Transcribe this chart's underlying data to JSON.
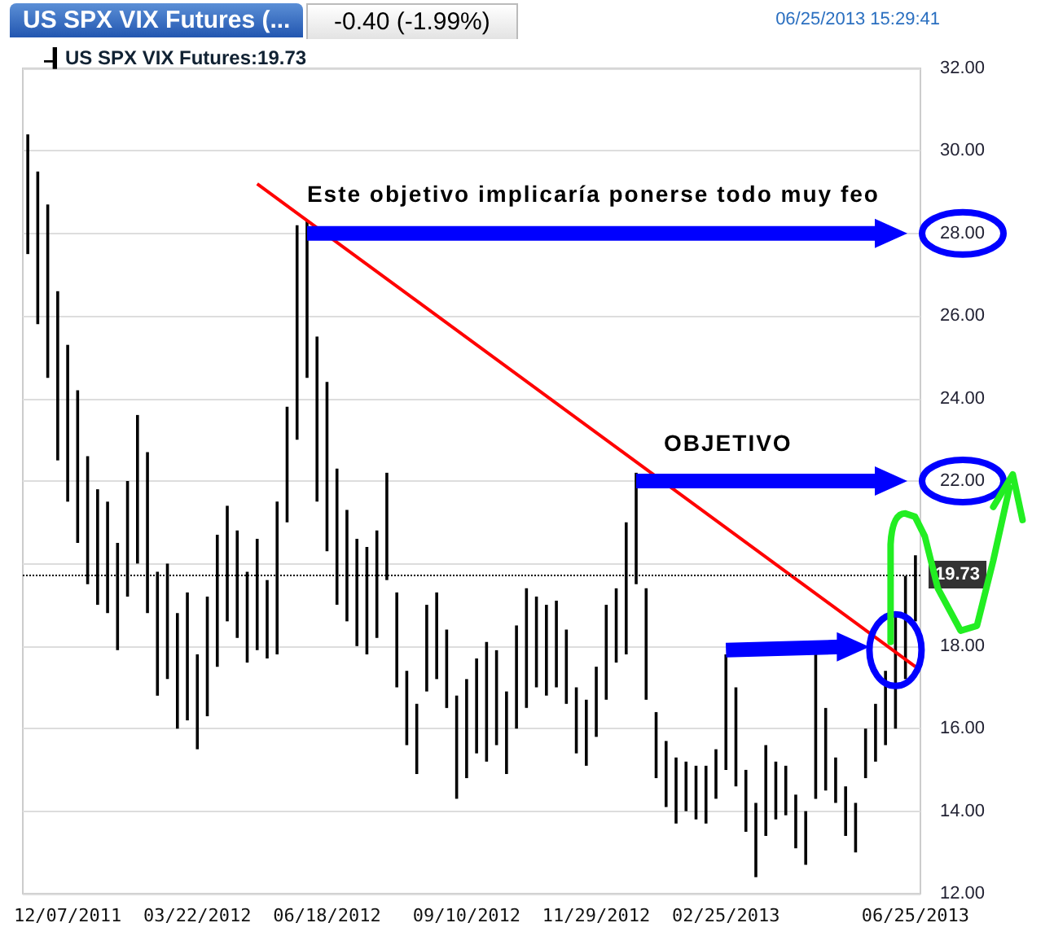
{
  "chart_data": {
    "type": "bar",
    "title": "US SPX VIX Futures (...",
    "subtitle": "-0.40 (-1.99%)",
    "annotations": [
      "06/25/2013 15:29:41",
      "Este objetivo implicaría ponerse todo muy feo",
      "OBJETIVO"
    ],
    "categories": [
      null,
      null,
      null,
      null,
      "12/07/2011",
      null,
      null,
      null,
      null,
      null,
      null,
      null,
      null,
      null,
      null,
      null,
      null,
      "03/22/2012",
      null,
      null,
      null,
      null,
      null,
      null,
      null,
      null,
      null,
      null,
      null,
      null,
      "06/18/2012",
      null,
      null,
      null,
      null,
      null,
      null,
      null,
      null,
      null,
      null,
      null,
      null,
      null,
      "09/10/2012",
      null,
      null,
      null,
      null,
      null,
      null,
      null,
      null,
      null,
      null,
      null,
      null,
      "11/29/2012",
      null,
      null,
      null,
      null,
      null,
      null,
      null,
      null,
      null,
      null,
      null,
      null,
      "02/25/2013",
      null,
      null,
      null,
      null,
      null,
      null,
      null,
      null,
      null,
      null,
      null,
      null,
      null,
      null,
      null,
      null,
      null,
      null,
      "06/25/2013"
    ],
    "series": [
      {
        "name": "US SPX VIX Futures:19.73",
        "color": "#000000",
        "base": [
          27.5,
          25.8,
          24.5,
          22.5,
          21.5,
          20.5,
          19.5,
          19.0,
          18.8,
          17.9,
          19.2,
          20.0,
          18.8,
          16.8,
          17.2,
          16.0,
          16.2,
          15.5,
          16.3,
          17.5,
          18.6,
          18.2,
          17.6,
          17.9,
          17.7,
          17.8,
          21.0,
          23.0,
          24.5,
          21.5,
          20.3,
          19.0,
          18.6,
          18.0,
          17.8,
          18.2,
          19.6,
          17.0,
          15.6,
          14.9,
          16.9,
          17.2,
          16.5,
          14.3,
          14.8,
          15.4,
          15.2,
          15.6,
          14.9,
          16.0,
          16.5,
          17.0,
          16.8,
          17.0,
          16.6,
          15.4,
          15.1,
          15.8,
          16.7,
          17.6,
          17.8,
          19.5,
          16.7,
          14.8,
          14.1,
          13.7,
          14.0,
          13.8,
          13.7,
          14.3,
          15.0,
          14.6,
          13.5,
          12.4,
          13.4,
          13.8,
          13.9,
          13.1,
          12.7,
          14.3,
          14.5,
          14.2,
          13.4,
          13.0,
          14.8,
          15.2,
          15.6,
          16.0,
          17.2,
          18.6
        ],
        "values": [
          2.9,
          3.7,
          4.2,
          4.1,
          3.8,
          3.7,
          3.1,
          2.8,
          2.7,
          2.6,
          2.8,
          3.6,
          3.9,
          3.0,
          2.8,
          2.8,
          3.1,
          2.3,
          2.9,
          3.2,
          2.8,
          2.6,
          2.2,
          2.7,
          1.9,
          3.7,
          2.8,
          5.2,
          3.8,
          4.0,
          4.1,
          3.3,
          2.7,
          2.6,
          2.6,
          2.6,
          2.6,
          2.3,
          1.8,
          1.7,
          2.1,
          2.1,
          1.9,
          2.5,
          2.4,
          2.3,
          2.9,
          2.3,
          2.0,
          2.5,
          2.9,
          2.2,
          2.2,
          2.1,
          1.8,
          1.6,
          1.6,
          1.7,
          2.3,
          1.8,
          3.2,
          2.7,
          2.7,
          1.6,
          1.6,
          1.6,
          1.2,
          1.3,
          1.4,
          1.2,
          2.8,
          2.4,
          1.5,
          1.8,
          2.2,
          1.4,
          1.2,
          1.3,
          1.3,
          3.5,
          2.0,
          1.1,
          1.2,
          1.2,
          1.2,
          1.4,
          1.8,
          2.8,
          2.5,
          1.6
        ]
      },
      {
        "type": "line",
        "color": "#ff0000",
        "values": [
          null,
          null,
          null,
          null,
          null,
          null,
          null,
          null,
          null,
          null,
          null,
          null,
          null,
          null,
          null,
          null,
          null,
          null,
          null,
          null,
          null,
          null,
          null,
          29.2,
          null,
          null,
          null,
          null,
          null,
          null,
          null,
          null,
          null,
          null,
          null,
          null,
          null,
          null,
          null,
          null,
          null,
          null,
          null,
          null,
          null,
          null,
          null,
          null,
          null,
          null,
          null,
          null,
          null,
          null,
          null,
          null,
          null,
          null,
          null,
          null,
          null,
          null,
          null,
          null,
          null,
          null,
          null,
          null,
          null,
          null,
          null,
          null,
          null,
          null,
          null,
          null,
          null,
          null,
          null,
          null,
          null,
          null,
          null,
          null,
          null,
          null,
          null,
          null,
          null,
          17.5
        ]
      }
    ],
    "ylim": [
      12,
      32
    ],
    "yticks": [
      {
        "value": 12,
        "label": "12.00"
      },
      {
        "value": 14,
        "label": "14.00"
      },
      {
        "value": 16,
        "label": "16.00"
      },
      {
        "value": 18,
        "label": "18.00"
      },
      {
        "value": 20,
        "label": null
      },
      {
        "value": 22,
        "label": "22.00"
      },
      {
        "value": 24,
        "label": "24.00"
      },
      {
        "value": 26,
        "label": "26.00"
      },
      {
        "value": 28,
        "label": "28.00"
      },
      {
        "value": 30,
        "label": "30.00"
      },
      {
        "value": 32,
        "label": "32.00"
      }
    ],
    "grid": "y",
    "legend": "top left",
    "ref_lines": [
      {
        "axis": "y",
        "value": 19.73,
        "label": "19.73",
        "line_style": "dotted",
        "color": "#000000"
      }
    ]
  }
}
